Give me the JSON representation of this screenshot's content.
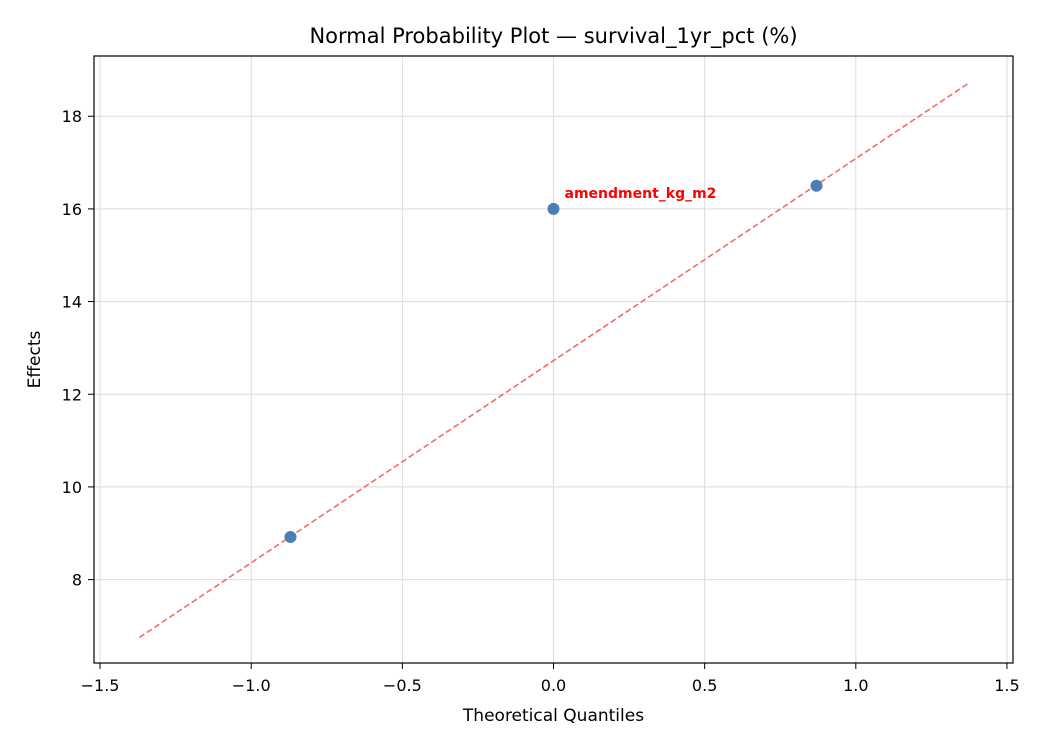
{
  "chart_data": {
    "type": "scatter",
    "title": "Normal Probability Plot — survival_1yr_pct (%)",
    "xlabel": "Theoretical Quantiles",
    "ylabel": "Effects",
    "xlim": [
      -1.52,
      1.52
    ],
    "ylim": [
      6.2,
      19.3
    ],
    "x_ticks": [
      -1.5,
      -1.0,
      -0.5,
      0.0,
      0.5,
      1.0,
      1.5
    ],
    "x_tick_labels": [
      "−1.5",
      "−1.0",
      "−0.5",
      "0.0",
      "0.5",
      "1.0",
      "1.5"
    ],
    "y_ticks": [
      8,
      10,
      12,
      14,
      16,
      18
    ],
    "y_tick_labels": [
      "8",
      "10",
      "12",
      "14",
      "16",
      "18"
    ],
    "grid": true,
    "points": [
      {
        "x": -0.87,
        "y": 8.92,
        "label": ""
      },
      {
        "x": 0.0,
        "y": 16.0,
        "label": "amendment_kg_m2"
      },
      {
        "x": 0.87,
        "y": 16.5,
        "label": ""
      }
    ],
    "reference_line": {
      "x": [
        -1.37,
        1.37
      ],
      "y": [
        6.75,
        18.7
      ],
      "style": "dashed"
    },
    "colors": {
      "points": "#4a7fb5",
      "reference_line": "#f26b6b",
      "annotation": "#ff0000",
      "grid": "#dcdcdc",
      "axes": "#000000"
    }
  }
}
